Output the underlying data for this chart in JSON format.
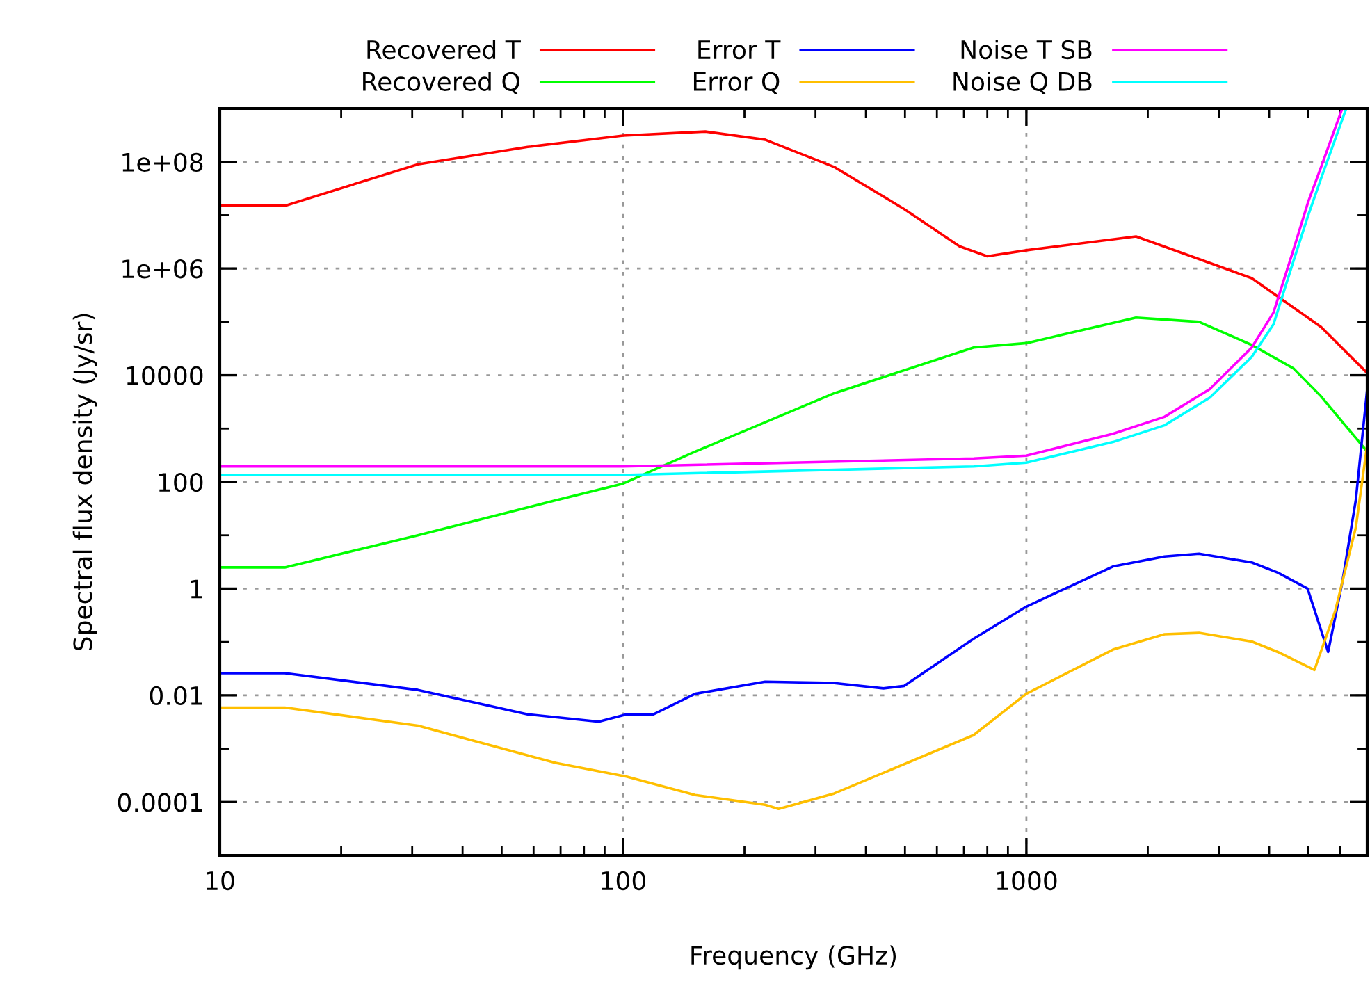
{
  "chart_data": {
    "type": "line",
    "xlabel": "Frequency (GHz)",
    "ylabel": "Spectral flux density (Jy/sr)",
    "log": "xy",
    "xlim": [
      10,
      7000
    ],
    "ylim": [
      1e-05,
      1000000000.0
    ],
    "xticks": [
      10,
      100,
      1000
    ],
    "yticks": [
      {
        "value": 0.0001,
        "label": "0.0001"
      },
      {
        "value": 0.001,
        "label": null
      },
      {
        "value": 0.01,
        "label": "0.01"
      },
      {
        "value": 0.1,
        "label": null
      },
      {
        "value": 1,
        "label": "1"
      },
      {
        "value": 10,
        "label": null
      },
      {
        "value": 100,
        "label": "100"
      },
      {
        "value": 1000,
        "label": null
      },
      {
        "value": 10000,
        "label": "10000"
      },
      {
        "value": 100000,
        "label": null
      },
      {
        "value": 1000000,
        "label": "1e+06"
      },
      {
        "value": 10000000,
        "label": null
      },
      {
        "value": 100000000,
        "label": "1e+08"
      }
    ],
    "grid": true,
    "legend": "top",
    "line_style": "solid",
    "marker": "none",
    "series": [
      {
        "name": "Recovered T",
        "color": "#ff0000",
        "x": [
          10,
          14.5,
          31,
          58,
          100,
          160,
          225,
          334,
          498,
          683,
          800,
          1000,
          1870,
          2620,
          3620,
          5380,
          7000
        ],
        "values": [
          15000000.0,
          15000000.0,
          90000000.0,
          190000000.0,
          310000000.0,
          370000000.0,
          260000000.0,
          80000000.0,
          13000000.0,
          2600000.0,
          1700000.0,
          2200000.0,
          4000000.0,
          1600000.0,
          660000.0,
          80000.0,
          11000.0
        ]
      },
      {
        "name": "Recovered Q",
        "color": "#00ff00",
        "x": [
          10,
          14.5,
          31,
          68,
          100,
          151,
          334,
          740,
          1000,
          1870,
          2680,
          3620,
          4590,
          5380,
          7000
        ],
        "values": [
          2.5,
          2.5,
          10,
          45,
          93,
          370,
          4600,
          33000,
          40000,
          120000,
          100000,
          37000,
          13500,
          4000,
          370
        ]
      },
      {
        "name": "Error T",
        "color": "#0000ff",
        "x": [
          10,
          14.5,
          31,
          58,
          87,
          102,
          119,
          151,
          225,
          334,
          442,
          498,
          740,
          1000,
          1640,
          2200,
          2680,
          3620,
          4200,
          4980,
          5600,
          6070,
          6560,
          7000
        ],
        "values": [
          0.026,
          0.026,
          0.0126,
          0.0044,
          0.0032,
          0.0044,
          0.0044,
          0.0107,
          0.018,
          0.017,
          0.0135,
          0.015,
          0.115,
          0.46,
          2.6,
          4,
          4.5,
          3.1,
          2,
          1,
          0.065,
          1.3,
          46,
          5500
        ]
      },
      {
        "name": "Error Q",
        "color": "#ffbf00",
        "x": [
          10,
          14.5,
          31,
          68,
          102,
          151,
          225,
          243,
          334,
          740,
          1000,
          1640,
          2200,
          2680,
          3620,
          4200,
          5180,
          5830,
          6560,
          7000
        ],
        "values": [
          0.0059,
          0.0059,
          0.0027,
          0.00054,
          0.0003,
          0.000135,
          8.9e-05,
          7.4e-05,
          0.000145,
          0.0018,
          0.0107,
          0.072,
          0.14,
          0.148,
          0.102,
          0.065,
          0.03,
          0.38,
          14,
          500
        ]
      },
      {
        "name": "Noise T SB",
        "color": "#ff00ff",
        "x": [
          10,
          100,
          740,
          1000,
          1640,
          2200,
          2850,
          3620,
          4100,
          4590,
          5000,
          5380,
          6070
        ],
        "values": [
          195,
          195,
          275,
          310,
          800,
          1660,
          5500,
          33000,
          150000.0,
          2200000.0,
          18000000.0,
          80000000.0,
          1000000000.0
        ]
      },
      {
        "name": "Noise Q DB",
        "color": "#00ffff",
        "x": [
          10,
          100,
          740,
          1000,
          1640,
          2200,
          2850,
          3620,
          4100,
          4590,
          5000,
          5380,
          6210
        ],
        "values": [
          135,
          135,
          195,
          230,
          560,
          1150,
          3800,
          22000,
          90000.0,
          1350000.0,
          10000000.0,
          49000000.0,
          1000000000.0
        ]
      }
    ]
  }
}
